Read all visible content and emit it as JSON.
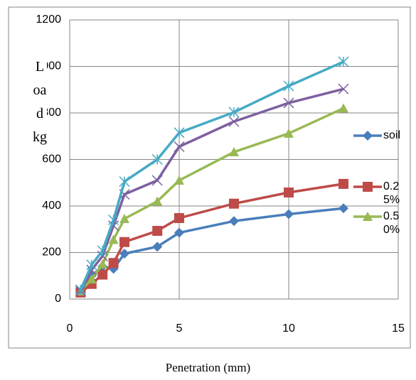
{
  "chart_data": {
    "type": "line",
    "x_label": "Penetration (mm)",
    "y_label": "Load kg",
    "x": [
      0.5,
      1,
      1.5,
      2,
      2.5,
      4,
      5,
      7.5,
      10,
      12.5
    ],
    "series": [
      {
        "name": "soil",
        "color": "#4a7ebb",
        "marker": "diamond",
        "values": [
          30,
          100,
          140,
          130,
          195,
          225,
          285,
          335,
          365,
          390
        ]
      },
      {
        "name": "0.25%",
        "color": "#be4b48",
        "marker": "square",
        "values": [
          28,
          65,
          105,
          155,
          245,
          293,
          348,
          410,
          458,
          495
        ]
      },
      {
        "name": "0.50%",
        "color": "#98b954",
        "marker": "triangle",
        "values": [
          34,
          85,
          150,
          255,
          345,
          420,
          510,
          632,
          712,
          820
        ]
      },
      {
        "color": "#7d60a0",
        "marker": "x",
        "values": [
          34,
          125,
          185,
          315,
          450,
          510,
          655,
          763,
          843,
          903
        ]
      },
      {
        "color": "#46aac5",
        "marker": "star",
        "values": [
          40,
          147,
          208,
          340,
          505,
          600,
          715,
          803,
          916,
          1020
        ]
      }
    ],
    "xlim": [
      0,
      15
    ],
    "xticks": [
      0,
      5,
      10,
      15
    ],
    "ylim": [
      0,
      1200
    ],
    "yticks": [
      0,
      200,
      400,
      600,
      800,
      1000,
      1200
    ],
    "grid": true,
    "legend": "right"
  }
}
